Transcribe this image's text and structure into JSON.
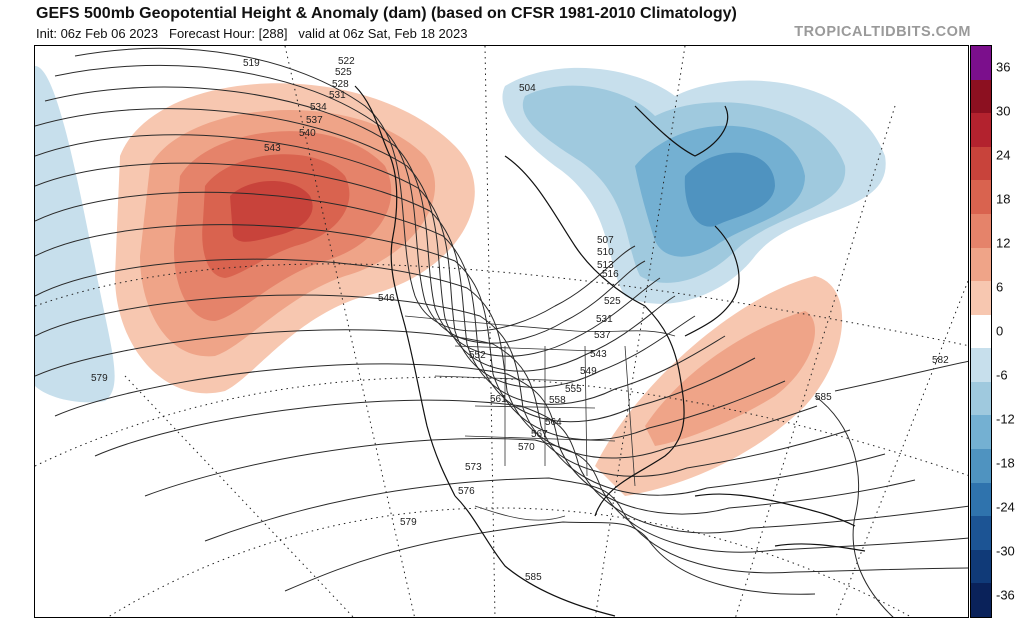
{
  "header": {
    "title": "GEFS 500mb Geopotential Height & Anomaly (dam) (based on CFSR 1981-2010 Climatology)",
    "init": "Init: 06z Feb 06 2023",
    "forecast_hour": "Forecast Hour: [288]",
    "valid": "valid at 06z Sat, Feb 18 2023",
    "brand": "TROPICALTIDBITS.COM"
  },
  "colorbar": {
    "ticks": [
      "36",
      "30",
      "24",
      "18",
      "12",
      "6",
      "0",
      "-6",
      "-12",
      "-18",
      "-24",
      "-30",
      "-36"
    ],
    "colors": [
      "#7b0f8c",
      "#8c1020",
      "#b3222e",
      "#c8433b",
      "#d9634f",
      "#e5836a",
      "#efa488",
      "#f7c7b0",
      "#ffffff",
      "#c7dfec",
      "#9fc9de",
      "#74b0d2",
      "#4f93c0",
      "#2f73ad",
      "#1c5494",
      "#103a78",
      "#0a225a"
    ]
  },
  "map": {
    "contour_labels": [
      {
        "text": "519"
      },
      {
        "text": "522"
      },
      {
        "text": "525"
      },
      {
        "text": "528"
      },
      {
        "text": "531"
      },
      {
        "text": "534"
      },
      {
        "text": "537"
      },
      {
        "text": "540"
      },
      {
        "text": "543"
      },
      {
        "text": "546"
      },
      {
        "text": "552"
      },
      {
        "text": "561"
      },
      {
        "text": "558"
      },
      {
        "text": "555"
      },
      {
        "text": "549"
      },
      {
        "text": "543"
      },
      {
        "text": "537"
      },
      {
        "text": "531"
      },
      {
        "text": "525"
      },
      {
        "text": "516"
      },
      {
        "text": "513"
      },
      {
        "text": "510"
      },
      {
        "text": "507"
      },
      {
        "text": "504"
      },
      {
        "text": "564"
      },
      {
        "text": "567"
      },
      {
        "text": "570"
      },
      {
        "text": "573"
      },
      {
        "text": "576"
      },
      {
        "text": "579"
      },
      {
        "text": "579"
      },
      {
        "text": "582"
      },
      {
        "text": "585"
      },
      {
        "text": "585"
      }
    ],
    "anomaly_colors": {
      "pos1": "#f7c7b0",
      "pos2": "#efa488",
      "pos3": "#e5836a",
      "pos4": "#d9634f",
      "pos5": "#c8433b",
      "neg1": "#c7dfec",
      "neg2": "#9fc9de",
      "neg3": "#74b0d2",
      "neg4": "#4f93c0"
    }
  }
}
